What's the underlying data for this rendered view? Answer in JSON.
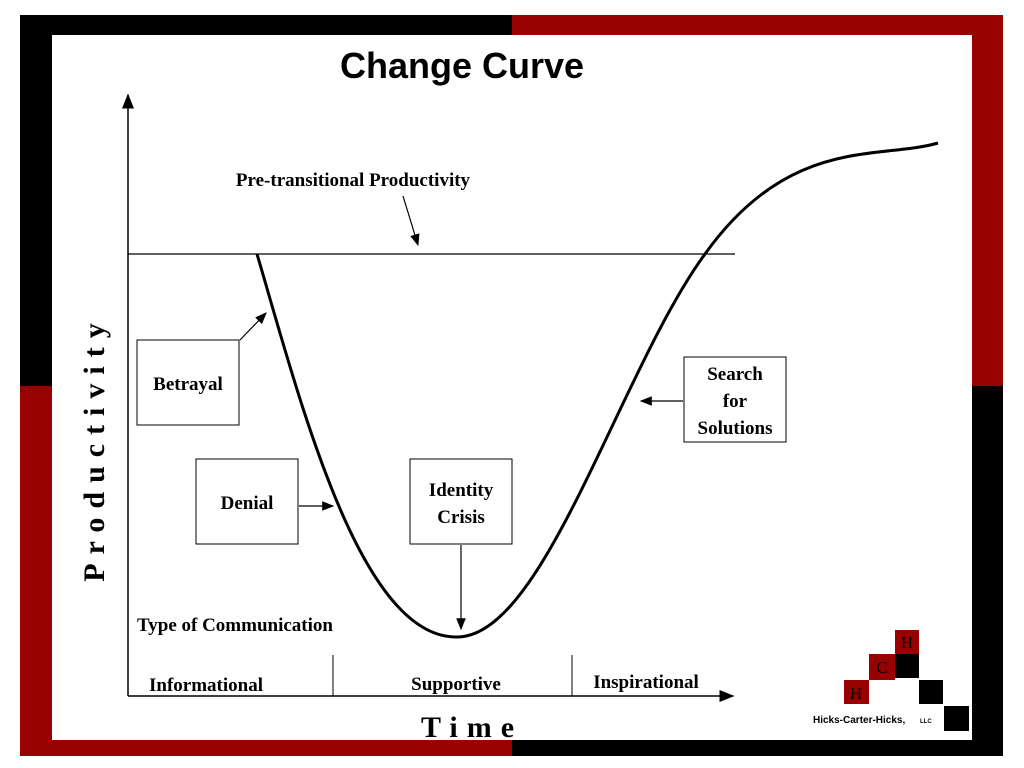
{
  "title": "Change Curve",
  "y_axis_label": "Productivity",
  "x_axis_label": "Time",
  "annotation": "Pre-transitional Productivity",
  "stages": [
    {
      "lines": [
        "Betrayal"
      ]
    },
    {
      "lines": [
        "Denial"
      ]
    },
    {
      "lines": [
        "Identity",
        "Crisis"
      ]
    },
    {
      "lines": [
        "Search",
        "for",
        "Solutions"
      ]
    }
  ],
  "communication": {
    "title": "Type of Communication",
    "phases": [
      "Informational",
      "Supportive",
      "Inspirational"
    ]
  },
  "logo": {
    "letters": [
      "H",
      "C",
      "H"
    ],
    "company": "Hicks-Carter-Hicks,",
    "suffix": "LLC"
  }
}
